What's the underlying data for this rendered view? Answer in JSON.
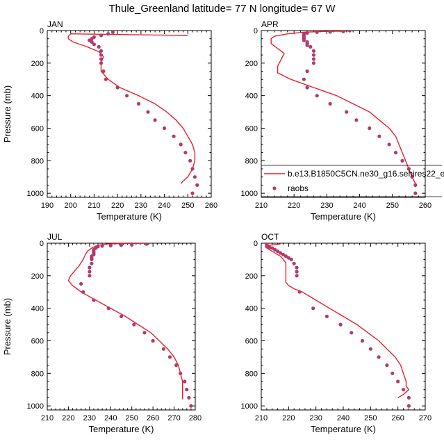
{
  "figure_title": "Thule_Greenland  latitude= 77 N longitude= 67 W",
  "colors": {
    "model": "#e8202a",
    "raobs": "#b23a6c",
    "axis": "#000000"
  },
  "legend": {
    "entries": [
      {
        "label": "b.e13.B1850C5CN.ne30_g16.sehires22_e",
        "kind": "line"
      },
      {
        "label": "raobs",
        "kind": "marker"
      }
    ]
  },
  "chart_data": [
    {
      "type": "line",
      "panel": "JAN",
      "xlabel": "Temperature (K)",
      "ylabel": "Pressure (mb)",
      "xlim": [
        190,
        260
      ],
      "ylim": [
        1025,
        0
      ],
      "xticks": [
        190,
        200,
        210,
        220,
        230,
        240,
        250,
        260
      ],
      "yticks": [
        0,
        200,
        400,
        600,
        800,
        1000
      ],
      "series": [
        {
          "name": "model",
          "style": "line",
          "points": [
            [
              250,
              30
            ],
            [
              200,
              20
            ],
            [
              199,
              35
            ],
            [
              199,
              50
            ],
            [
              201,
              70
            ],
            [
              207,
              100
            ],
            [
              212,
              130
            ],
            [
              214,
              160
            ],
            [
              213,
              200
            ],
            [
              213,
              250
            ],
            [
              216,
              300
            ],
            [
              221,
              350
            ],
            [
              229,
              400
            ],
            [
              236,
              450
            ],
            [
              241,
              500
            ],
            [
              245,
              550
            ],
            [
              248,
              600
            ],
            [
              250,
              650
            ],
            [
              252,
              700
            ],
            [
              253,
              750
            ],
            [
              253,
              800
            ],
            [
              252,
              850
            ],
            [
              250,
              900
            ],
            [
              248,
              925
            ],
            [
              247,
              940
            ]
          ]
        },
        {
          "name": "raobs",
          "style": "scatter",
          "points": [
            [
              218,
              10
            ],
            [
              216,
              20
            ],
            [
              213,
              30
            ],
            [
              210,
              40
            ],
            [
              209,
              50
            ],
            [
              208,
              60
            ],
            [
              209,
              70
            ],
            [
              210,
              85
            ],
            [
              212,
              100
            ],
            [
              213,
              125
            ],
            [
              213,
              150
            ],
            [
              213,
              175
            ],
            [
              213,
              200
            ],
            [
              214,
              250
            ],
            [
              215,
              300
            ],
            [
              220,
              350
            ],
            [
              224,
              400
            ],
            [
              229,
              450
            ],
            [
              233,
              500
            ],
            [
              236,
              550
            ],
            [
              240,
              600
            ],
            [
              244,
              650
            ],
            [
              247,
              700
            ],
            [
              249,
              750
            ],
            [
              251,
              800
            ],
            [
              252,
              850
            ],
            [
              253,
              900
            ],
            [
              254,
              950
            ],
            [
              252,
              1000
            ]
          ]
        }
      ]
    },
    {
      "type": "line",
      "panel": "APR",
      "xlabel": "Temperature (K)",
      "ylabel": "",
      "xlim": [
        210,
        260
      ],
      "ylim": [
        1025,
        0
      ],
      "xticks": [
        210,
        220,
        230,
        240,
        250,
        260
      ],
      "yticks": [
        0,
        200,
        400,
        600,
        800,
        1000
      ],
      "series": [
        {
          "name": "model",
          "style": "line",
          "points": [
            [
              237,
              3
            ],
            [
              230,
              5
            ],
            [
              223,
              10
            ],
            [
              218,
              20
            ],
            [
              214,
              35
            ],
            [
              213,
              50
            ],
            [
              213,
              80
            ],
            [
              215,
              110
            ],
            [
              217,
              140
            ],
            [
              216,
              180
            ],
            [
              215,
              220
            ],
            [
              215,
              260
            ],
            [
              219,
              300
            ],
            [
              226,
              350
            ],
            [
              233,
              400
            ],
            [
              238,
              450
            ],
            [
              243,
              500
            ],
            [
              246,
              550
            ],
            [
              249,
              600
            ],
            [
              251,
              650
            ],
            [
              252,
              700
            ],
            [
              253,
              750
            ],
            [
              254,
              800
            ],
            [
              255,
              850
            ],
            [
              256,
              900
            ],
            [
              257,
              940
            ],
            [
              257,
              960
            ]
          ]
        },
        {
          "name": "raobs",
          "style": "scatter",
          "points": [
            [
              237,
              0
            ],
            [
              235,
              5
            ],
            [
              231,
              8
            ],
            [
              227,
              10
            ],
            [
              224,
              15
            ],
            [
              223,
              20
            ],
            [
              223,
              30
            ],
            [
              223,
              40
            ],
            [
              223,
              50
            ],
            [
              223,
              60
            ],
            [
              224,
              70
            ],
            [
              224,
              80
            ],
            [
              224,
              90
            ],
            [
              225,
              100
            ],
            [
              226,
              125
            ],
            [
              226,
              150
            ],
            [
              226,
              175
            ],
            [
              226,
              200
            ],
            [
              224,
              250
            ],
            [
              223,
              300
            ],
            [
              224,
              350
            ],
            [
              227,
              400
            ],
            [
              231,
              450
            ],
            [
              236,
              500
            ],
            [
              239,
              550
            ],
            [
              243,
              600
            ],
            [
              246,
              650
            ],
            [
              249,
              700
            ],
            [
              251,
              750
            ],
            [
              253,
              800
            ],
            [
              255,
              850
            ],
            [
              256,
              900
            ],
            [
              257,
              950
            ],
            [
              257,
              1000
            ]
          ]
        }
      ]
    },
    {
      "type": "line",
      "panel": "JUL",
      "xlabel": "Temperature (K)",
      "ylabel": "Pressure (mb)",
      "xlim": [
        210,
        280
      ],
      "ylim": [
        1025,
        0
      ],
      "xticks": [
        210,
        220,
        230,
        240,
        250,
        260,
        270,
        280
      ],
      "yticks": [
        0,
        200,
        400,
        600,
        800,
        1000
      ],
      "series": [
        {
          "name": "model",
          "style": "line",
          "points": [
            [
              258,
              0
            ],
            [
              245,
              2
            ],
            [
              238,
              5
            ],
            [
              234,
              12
            ],
            [
              231,
              30
            ],
            [
              229,
              50
            ],
            [
              228,
              70
            ],
            [
              227,
              100
            ],
            [
              225,
              140
            ],
            [
              223,
              170
            ],
            [
              221,
              200
            ],
            [
              220,
              230
            ],
            [
              222,
              260
            ],
            [
              226,
              300
            ],
            [
              233,
              350
            ],
            [
              240,
              400
            ],
            [
              247,
              450
            ],
            [
              253,
              500
            ],
            [
              259,
              550
            ],
            [
              263,
              600
            ],
            [
              267,
              650
            ],
            [
              270,
              700
            ],
            [
              272,
              750
            ],
            [
              273,
              800
            ],
            [
              274,
              850
            ],
            [
              274,
              900
            ],
            [
              274,
              940
            ],
            [
              274,
              960
            ]
          ]
        },
        {
          "name": "raobs",
          "style": "scatter",
          "points": [
            [
              257,
              5
            ],
            [
              250,
              10
            ],
            [
              245,
              12
            ],
            [
              240,
              15
            ],
            [
              236,
              17
            ],
            [
              234,
              20
            ],
            [
              233,
              25
            ],
            [
              233,
              30
            ],
            [
              232,
              40
            ],
            [
              232,
              50
            ],
            [
              232,
              60
            ],
            [
              232,
              70
            ],
            [
              231,
              80
            ],
            [
              231,
              90
            ],
            [
              231,
              100
            ],
            [
              231,
              125
            ],
            [
              230,
              150
            ],
            [
              230,
              175
            ],
            [
              230,
              200
            ],
            [
              226,
              250
            ],
            [
              227,
              300
            ],
            [
              232,
              350
            ],
            [
              239,
              400
            ],
            [
              245,
              450
            ],
            [
              251,
              500
            ],
            [
              256,
              550
            ],
            [
              260,
              600
            ],
            [
              265,
              650
            ],
            [
              268,
              700
            ],
            [
              271,
              750
            ],
            [
              273,
              800
            ],
            [
              275,
              850
            ],
            [
              276,
              900
            ],
            [
              277,
              950
            ],
            [
              278,
              1000
            ]
          ]
        }
      ]
    },
    {
      "type": "line",
      "panel": "OCT",
      "xlabel": "Temperature (K)",
      "ylabel": "",
      "xlim": [
        210,
        270
      ],
      "ylim": [
        1025,
        0
      ],
      "xticks": [
        210,
        220,
        230,
        240,
        250,
        260,
        270
      ],
      "yticks": [
        0,
        200,
        400,
        600,
        800,
        1000
      ],
      "series": [
        {
          "name": "model",
          "style": "line",
          "points": [
            [
              217,
              5
            ],
            [
              212,
              15
            ],
            [
              212,
              30
            ],
            [
              214,
              50
            ],
            [
              217,
              80
            ],
            [
              219,
              120
            ],
            [
              219,
              160
            ],
            [
              219,
              200
            ],
            [
              219,
              240
            ],
            [
              220,
              260
            ],
            [
              222,
              280
            ],
            [
              225,
              300
            ],
            [
              230,
              350
            ],
            [
              235,
              400
            ],
            [
              240,
              450
            ],
            [
              245,
              500
            ],
            [
              249,
              550
            ],
            [
              253,
              600
            ],
            [
              256,
              650
            ],
            [
              259,
              700
            ],
            [
              261,
              750
            ],
            [
              262,
              800
            ],
            [
              263,
              850
            ],
            [
              263,
              880
            ],
            [
              264,
              900
            ],
            [
              262,
              930
            ],
            [
              260,
              950
            ]
          ]
        },
        {
          "name": "raobs",
          "style": "scatter",
          "points": [
            [
              212,
              5
            ],
            [
              212,
              10
            ],
            [
              212,
              20
            ],
            [
              213,
              25
            ],
            [
              214,
              30
            ],
            [
              215,
              40
            ],
            [
              216,
              50
            ],
            [
              217,
              60
            ],
            [
              218,
              70
            ],
            [
              219,
              80
            ],
            [
              220,
              90
            ],
            [
              221,
              100
            ],
            [
              222,
              125
            ],
            [
              223,
              150
            ],
            [
              223,
              175
            ],
            [
              223,
              200
            ],
            [
              224,
              300
            ],
            [
              229,
              400
            ],
            [
              234,
              450
            ],
            [
              239,
              500
            ],
            [
              243,
              550
            ],
            [
              247,
              600
            ],
            [
              250,
              650
            ],
            [
              253,
              700
            ],
            [
              256,
              750
            ],
            [
              258,
              800
            ],
            [
              260,
              850
            ],
            [
              262,
              900
            ],
            [
              264,
              950
            ],
            [
              264,
              1000
            ]
          ]
        }
      ]
    }
  ]
}
